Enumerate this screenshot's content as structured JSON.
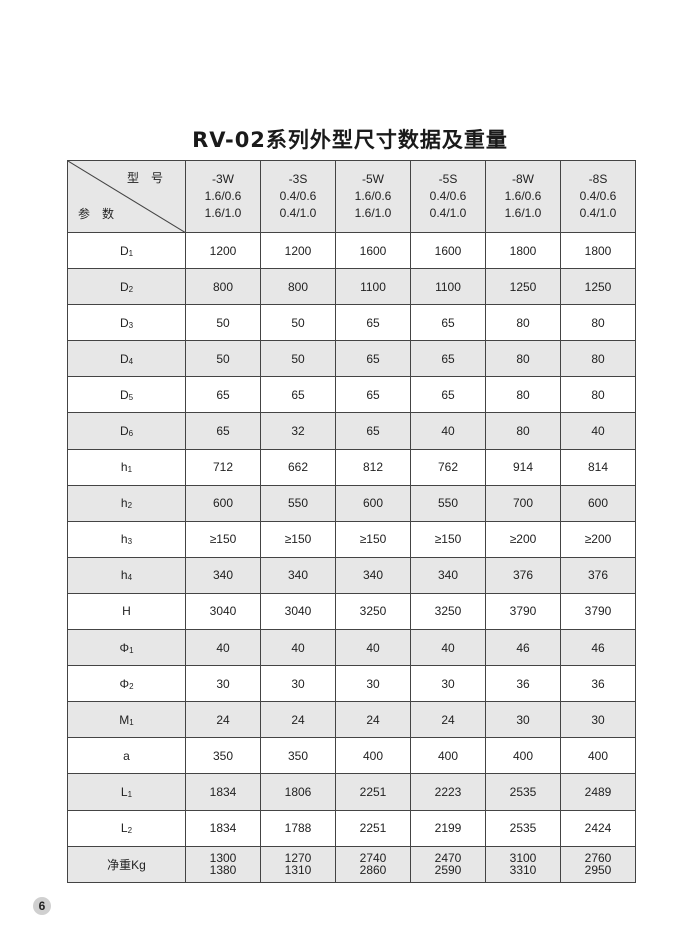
{
  "title": "RV-02系列外型尺寸数据及重量",
  "header": {
    "model_label": "型号",
    "param_label": "参数",
    "columns": [
      {
        "model": "-3W",
        "p1": "1.6/0.6",
        "p2": "1.6/1.0"
      },
      {
        "model": "-3S",
        "p1": "0.4/0.6",
        "p2": "0.4/1.0"
      },
      {
        "model": "-5W",
        "p1": "1.6/0.6",
        "p2": "1.6/1.0"
      },
      {
        "model": "-5S",
        "p1": "0.4/0.6",
        "p2": "0.4/1.0"
      },
      {
        "model": "-8W",
        "p1": "1.6/0.6",
        "p2": "1.6/1.0"
      },
      {
        "model": "-8S",
        "p1": "0.4/0.6",
        "p2": "0.4/1.0"
      }
    ]
  },
  "rows": [
    {
      "param": "D",
      "sub": "1",
      "values": [
        "1200",
        "1200",
        "1600",
        "1600",
        "1800",
        "1800"
      ]
    },
    {
      "param": "D",
      "sub": "2",
      "values": [
        "800",
        "800",
        "1100",
        "1100",
        "1250",
        "1250"
      ]
    },
    {
      "param": "D",
      "sub": "3",
      "values": [
        "50",
        "50",
        "65",
        "65",
        "80",
        "80"
      ]
    },
    {
      "param": "D",
      "sub": "4",
      "values": [
        "50",
        "50",
        "65",
        "65",
        "80",
        "80"
      ]
    },
    {
      "param": "D",
      "sub": "5",
      "values": [
        "65",
        "65",
        "65",
        "65",
        "80",
        "80"
      ]
    },
    {
      "param": "D",
      "sub": "6",
      "values": [
        "65",
        "32",
        "65",
        "40",
        "80",
        "40"
      ]
    },
    {
      "param": "h",
      "sub": "1",
      "values": [
        "712",
        "662",
        "812",
        "762",
        "914",
        "814"
      ]
    },
    {
      "param": "h",
      "sub": "2",
      "values": [
        "600",
        "550",
        "600",
        "550",
        "700",
        "600"
      ]
    },
    {
      "param": "h",
      "sub": "3",
      "values": [
        "≥150",
        "≥150",
        "≥150",
        "≥150",
        "≥200",
        "≥200"
      ]
    },
    {
      "param": "h",
      "sub": "4",
      "values": [
        "340",
        "340",
        "340",
        "340",
        "376",
        "376"
      ]
    },
    {
      "param": "H",
      "sub": "",
      "values": [
        "3040",
        "3040",
        "3250",
        "3250",
        "3790",
        "3790"
      ]
    },
    {
      "param": "Φ",
      "sub": "1",
      "values": [
        "40",
        "40",
        "40",
        "40",
        "46",
        "46"
      ]
    },
    {
      "param": "Φ",
      "sub": "2",
      "values": [
        "30",
        "30",
        "30",
        "30",
        "36",
        "36"
      ]
    },
    {
      "param": "M",
      "sub": "1",
      "values": [
        "24",
        "24",
        "24",
        "24",
        "30",
        "30"
      ]
    },
    {
      "param": "a",
      "sub": "",
      "values": [
        "350",
        "350",
        "400",
        "400",
        "400",
        "400"
      ]
    },
    {
      "param": "L",
      "sub": "1",
      "values": [
        "1834",
        "1806",
        "2251",
        "2223",
        "2535",
        "2489"
      ]
    },
    {
      "param": "L",
      "sub": "2",
      "values": [
        "1834",
        "1788",
        "2251",
        "2199",
        "2535",
        "2424"
      ]
    }
  ],
  "weight": {
    "param": "净重Kg",
    "values": [
      [
        "1300",
        "1380"
      ],
      [
        "1270",
        "1310"
      ],
      [
        "2740",
        "2860"
      ],
      [
        "2470",
        "2590"
      ],
      [
        "3100",
        "3310"
      ],
      [
        "2760",
        "2950"
      ]
    ]
  },
  "page_number": "6"
}
